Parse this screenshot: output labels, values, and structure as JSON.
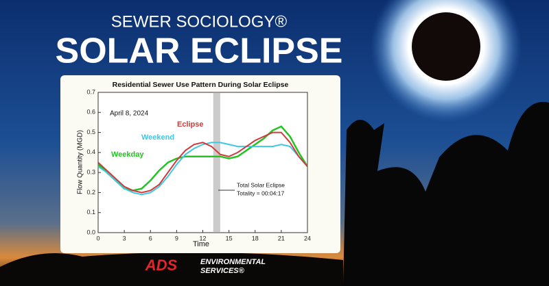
{
  "header": {
    "kicker": "SEWER SOCIOLOGY®",
    "title": "SOLAR ECLIPSE"
  },
  "footer": {
    "logo": "ADS",
    "brand_line1": "ENVIRONMENTAL",
    "brand_line2": "SERVICES®"
  },
  "chart_data": {
    "type": "line",
    "title": "Residential Sewer Use Pattern During Solar Eclipse",
    "x_label": "Time",
    "y_label": "Flow Quantity (MGD)",
    "annotations": [
      "April 8, 2024",
      "Total Solar Eclipse",
      "Totality = 00:04:17"
    ],
    "highlight_x": [
      13.2,
      14.0
    ],
    "x": [
      0,
      1,
      2,
      3,
      4,
      5,
      6,
      7,
      8,
      9,
      10,
      11,
      12,
      13,
      14,
      15,
      16,
      17,
      18,
      19,
      20,
      21,
      22,
      23,
      24
    ],
    "series": [
      {
        "name": "Weekday",
        "color": "#22c322",
        "values": [
          0.34,
          0.3,
          0.26,
          0.22,
          0.21,
          0.22,
          0.26,
          0.31,
          0.35,
          0.37,
          0.38,
          0.38,
          0.38,
          0.38,
          0.38,
          0.37,
          0.38,
          0.41,
          0.44,
          0.47,
          0.51,
          0.53,
          0.48,
          0.4,
          0.33
        ]
      },
      {
        "name": "Weekend",
        "color": "#3cc8e6",
        "values": [
          0.33,
          0.3,
          0.26,
          0.22,
          0.2,
          0.19,
          0.2,
          0.23,
          0.28,
          0.34,
          0.39,
          0.42,
          0.44,
          0.45,
          0.45,
          0.44,
          0.43,
          0.43,
          0.43,
          0.43,
          0.43,
          0.44,
          0.43,
          0.38,
          0.33
        ]
      },
      {
        "name": "Eclipse",
        "color": "#d03a3a",
        "values": [
          0.35,
          0.31,
          0.27,
          0.23,
          0.21,
          0.2,
          0.21,
          0.24,
          0.3,
          0.36,
          0.41,
          0.44,
          0.45,
          0.43,
          0.39,
          0.38,
          0.4,
          0.43,
          0.46,
          0.48,
          0.5,
          0.5,
          0.45,
          0.38,
          0.33
        ]
      }
    ],
    "xlim": [
      0,
      24
    ],
    "xticks": [
      0,
      3,
      6,
      9,
      12,
      15,
      18,
      21,
      24
    ],
    "ylim": [
      0,
      0.7
    ],
    "yticks": [
      {
        "value": 0,
        "label": "0.0"
      },
      0.1,
      0.2,
      0.3,
      0.4,
      0.5,
      0.6,
      0.7
    ]
  }
}
